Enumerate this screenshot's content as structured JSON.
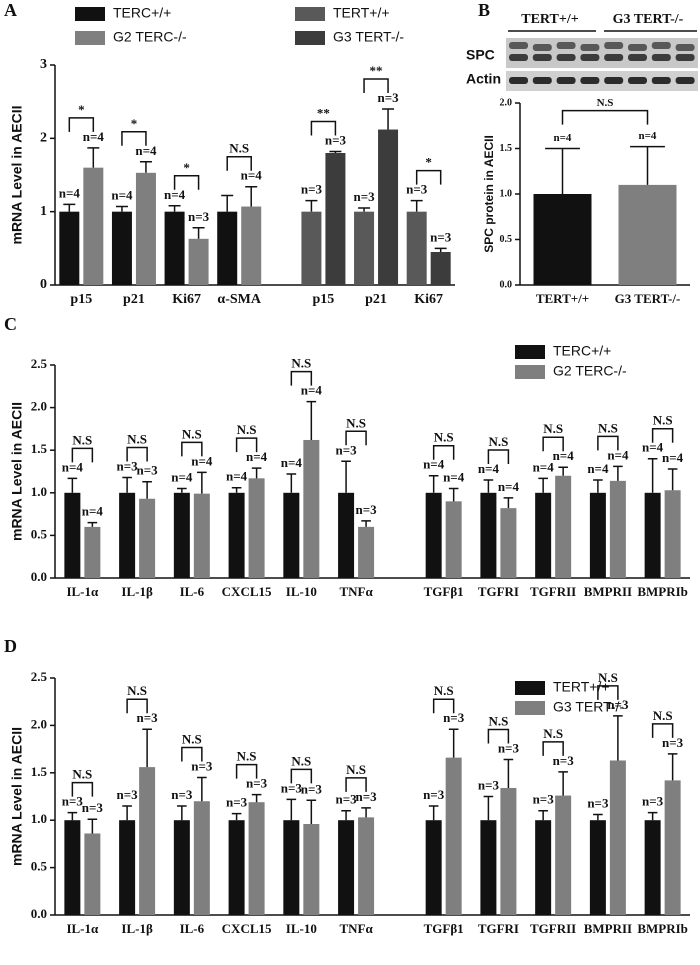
{
  "chart_data": [
    {
      "type": "bar",
      "panel": "A",
      "ylabel": "mRNA Level in AECII",
      "categories": [
        "p15",
        "p21",
        "Ki67",
        "α-SMA",
        "p15",
        "p21",
        "Ki67"
      ],
      "series": [
        {
          "name": "TERC+/+",
          "color": "#111111",
          "values": [
            1.0,
            1.0,
            1.0,
            1.0,
            null,
            null,
            null
          ],
          "errors": [
            0.1,
            0.07,
            0.08,
            0.22,
            null,
            null,
            null
          ],
          "n_labels": [
            "n=4",
            "n=4",
            "n=4",
            null,
            null,
            null,
            null
          ]
        },
        {
          "name": "G2 TERC-/-",
          "color": "#7f7f7f",
          "values": [
            1.6,
            1.53,
            0.63,
            1.07,
            null,
            null,
            null
          ],
          "errors": [
            0.27,
            0.15,
            0.15,
            0.27,
            null,
            null,
            null
          ],
          "n_labels": [
            "n=4",
            "n=4",
            "n=3",
            "n=4",
            null,
            null,
            null
          ]
        },
        {
          "name": "TERT+/+",
          "color": "#595959",
          "values": [
            null,
            null,
            null,
            null,
            1.0,
            1.0,
            1.0
          ],
          "errors": [
            null,
            null,
            null,
            null,
            0.15,
            0.05,
            0.15
          ],
          "n_labels": [
            null,
            null,
            null,
            null,
            "n=3",
            "n=3",
            "n=3"
          ]
        },
        {
          "name": "G3 TERT-/-",
          "color": "#3c3c3c",
          "values": [
            null,
            null,
            null,
            null,
            1.8,
            2.12,
            0.45
          ],
          "errors": [
            null,
            null,
            null,
            null,
            0.02,
            0.28,
            0.05
          ],
          "n_labels": [
            null,
            null,
            null,
            null,
            "n=3",
            "n=3",
            "n=3"
          ]
        }
      ],
      "significance": [
        "*",
        "*",
        "*",
        "N.S",
        "**",
        "**",
        "*"
      ],
      "ylim": [
        0,
        3
      ],
      "yticks": [
        0,
        1,
        2,
        3
      ]
    },
    {
      "type": "bar",
      "panel": "B",
      "ylabel": "SPC protein in AECII",
      "blot_labels": {
        "groups": [
          "TERT+/+",
          "G3 TERT-/-"
        ],
        "rows": [
          "SPC",
          "Actin"
        ]
      },
      "categories": [
        "TERT+/+",
        "G3 TERT-/-"
      ],
      "values": [
        1.0,
        1.1
      ],
      "errors": [
        0.5,
        0.42
      ],
      "colors": [
        "#111111",
        "#7f7f7f"
      ],
      "n_labels": [
        "n=4",
        "n=4"
      ],
      "significance": "N.S",
      "ylim": [
        0,
        2
      ],
      "yticks": [
        {
          "value": 0,
          "label": "0.0"
        },
        {
          "value": 0.5,
          "label": "0.5"
        },
        {
          "value": 1,
          "label": "1.0"
        },
        {
          "value": 1.5,
          "label": "1.5"
        },
        {
          "value": 2,
          "label": "2.0"
        }
      ]
    },
    {
      "type": "bar",
      "panel": "C",
      "ylabel": "mRNA Level in AECII",
      "categories": [
        "IL-1α",
        "IL-1β",
        "IL-6",
        "CXCL15",
        "IL-10",
        "TNFα",
        "TGFβ1",
        "TGFRI",
        "TGFRII",
        "BMPRII",
        "BMPRIb"
      ],
      "series": [
        {
          "name": "TERC+/+",
          "color": "#111111",
          "values": [
            1.0,
            1.0,
            1.0,
            1.0,
            1.0,
            1.0,
            1.0,
            1.0,
            1.0,
            1.0,
            1.0
          ],
          "errors": [
            0.17,
            0.18,
            0.05,
            0.06,
            0.22,
            0.37,
            0.2,
            0.15,
            0.17,
            0.15,
            0.4
          ],
          "n_labels": [
            "n=4",
            "n=3",
            "n=4",
            "n=4",
            "n=4",
            "n=3",
            "n=4",
            "n=4",
            "n=4",
            "n=4",
            "n=4"
          ]
        },
        {
          "name": "G2 TERC-/-",
          "color": "#7f7f7f",
          "values": [
            0.6,
            0.93,
            0.99,
            1.17,
            1.62,
            0.6,
            0.9,
            0.82,
            1.2,
            1.14,
            1.03
          ],
          "errors": [
            0.05,
            0.2,
            0.25,
            0.12,
            0.45,
            0.07,
            0.15,
            0.12,
            0.1,
            0.17,
            0.25
          ],
          "n_labels": [
            "n=4",
            "n=3",
            "n=4",
            "n=4",
            "n=4",
            "n=3",
            "n=4",
            "n=4",
            "n=4",
            "n=4",
            "n=4"
          ]
        }
      ],
      "significance": [
        "N.S",
        "N.S",
        "N.S",
        "N.S",
        "N.S",
        "N.S",
        "N.S",
        "N.S",
        "N.S",
        "N.S",
        "N.S"
      ],
      "ylim": [
        0,
        2.5
      ],
      "yticks": [
        {
          "value": 0,
          "label": "0.0"
        },
        {
          "value": 0.5,
          "label": "0.5"
        },
        {
          "value": 1,
          "label": "1.0"
        },
        {
          "value": 1.5,
          "label": "1.5"
        },
        {
          "value": 2,
          "label": "2.0"
        },
        {
          "value": 2.5,
          "label": "2.5"
        }
      ]
    },
    {
      "type": "bar",
      "panel": "D",
      "ylabel": "mRNA Level in AECII",
      "categories": [
        "IL-1α",
        "IL-1β",
        "IL-6",
        "CXCL15",
        "IL-10",
        "TNFα",
        "TGFβ1",
        "TGFRI",
        "TGFRII",
        "BMPRII",
        "BMPRIb"
      ],
      "series": [
        {
          "name": "TERT+/+",
          "color": "#111111",
          "values": [
            1.0,
            1.0,
            1.0,
            1.0,
            1.0,
            1.0,
            1.0,
            1.0,
            1.0,
            1.0,
            1.0
          ],
          "errors": [
            0.08,
            0.15,
            0.15,
            0.07,
            0.22,
            0.1,
            0.15,
            0.25,
            0.1,
            0.06,
            0.08
          ],
          "n_labels": [
            "n=3",
            "n=3",
            "n=3",
            "n=3",
            "n=3",
            "n=3",
            "n=3",
            "n=3",
            "n=3",
            "n=3",
            "n=3"
          ]
        },
        {
          "name": "G3 TERT-/-",
          "color": "#7f7f7f",
          "values": [
            0.86,
            1.56,
            1.2,
            1.19,
            0.96,
            1.03,
            1.66,
            1.34,
            1.26,
            1.63,
            1.42
          ],
          "errors": [
            0.15,
            0.4,
            0.25,
            0.08,
            0.25,
            0.1,
            0.3,
            0.3,
            0.25,
            0.47,
            0.28
          ],
          "n_labels": [
            "n=3",
            "n=3",
            "n=3",
            "n=3",
            "n=3",
            "n=3",
            "n=3",
            "n=3",
            "n=3",
            "n=3",
            "n=3"
          ]
        }
      ],
      "significance": [
        "N.S",
        "N.S",
        "N.S",
        "N.S",
        "N.S",
        "N.S",
        "N.S",
        "N.S",
        "N.S",
        "N.S",
        "N.S"
      ],
      "ylim": [
        0,
        2.5
      ],
      "yticks": [
        {
          "value": 0,
          "label": "0.0"
        },
        {
          "value": 0.5,
          "label": "0.5"
        },
        {
          "value": 1,
          "label": "1.0"
        },
        {
          "value": 1.5,
          "label": "1.5"
        },
        {
          "value": 2,
          "label": "2.0"
        },
        {
          "value": 2.5,
          "label": "2.5"
        }
      ]
    }
  ]
}
